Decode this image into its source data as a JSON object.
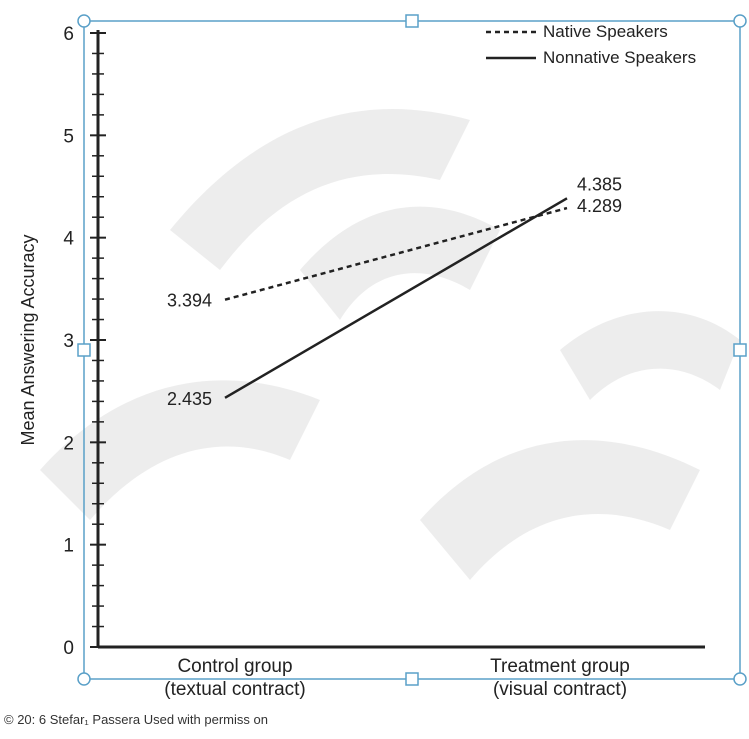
{
  "chart_data": {
    "type": "line",
    "categories": [
      "Control group\n(textual contract)",
      "Treatment group\n(visual contract)"
    ],
    "series": [
      {
        "name": "Native Speakers",
        "values": [
          3.394,
          4.289
        ],
        "style": "dotted",
        "color": "#222222"
      },
      {
        "name": "Nonnative Speakers",
        "values": [
          2.435,
          4.385
        ],
        "style": "solid",
        "color": "#222222"
      }
    ],
    "ylabel": "Mean Answering Accuracy",
    "ylim": [
      0,
      6
    ],
    "yticks": [
      "0",
      "1",
      "2",
      "3",
      "4",
      "5",
      "6"
    ],
    "data_labels": {
      "native": [
        "3.394",
        "4.289"
      ],
      "nonnative": [
        "2.435",
        "4.385"
      ]
    },
    "grid": false,
    "legend_position": "top-right"
  },
  "footer": {
    "copyright": "© 20: 6 Stefar₁ Passera Used with permiss on"
  },
  "colors": {
    "axis": "#222222",
    "frame": "#5aa0c8",
    "watermark": "#e8e8e8"
  }
}
